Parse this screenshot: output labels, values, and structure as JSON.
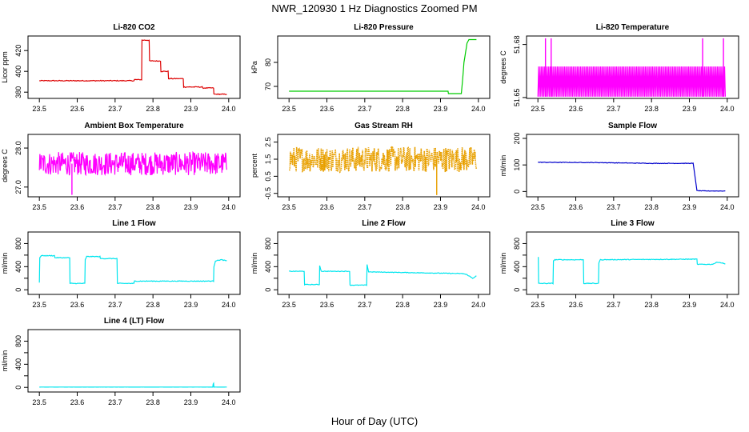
{
  "figure": {
    "title": "NWR_120930  1 Hz Diagnostics Zoomed PM",
    "xlabel": "Hour of Day (UTC)"
  },
  "chart_data": [
    {
      "type": "line",
      "title": "Li-820 CO2",
      "ylabel": "Licor ppm",
      "color": "#dd0000",
      "xlim": [
        23.47,
        24.03
      ],
      "ylim": [
        374,
        434
      ],
      "yticks": [
        380,
        400,
        420
      ],
      "ytick_labels": [
        "380",
        "400",
        "420"
      ],
      "xticks": [
        23.5,
        23.6,
        23.7,
        23.8,
        23.9,
        24.0
      ],
      "xtick_labels": [
        "23.5",
        "23.6",
        "23.7",
        "23.8",
        "23.9",
        "24.0"
      ],
      "series": [
        {
          "name": "CO2",
          "x": [
            23.5,
            23.75,
            23.751,
            23.77,
            23.771,
            23.79,
            23.791,
            23.82,
            23.821,
            23.84,
            23.841,
            23.88,
            23.881,
            23.93,
            23.931,
            23.96,
            23.961,
            23.995
          ],
          "y": [
            391,
            391,
            392,
            392,
            430,
            430,
            410,
            410,
            400,
            400,
            393,
            393,
            385,
            385,
            384,
            384,
            378,
            378
          ],
          "noise": 0.4
        }
      ]
    },
    {
      "type": "line",
      "title": "Li-820 Pressure",
      "ylabel": "kPa",
      "color": "#00cc00",
      "xlim": [
        23.47,
        24.03
      ],
      "ylim": [
        65,
        91
      ],
      "yticks": [
        70,
        80
      ],
      "ytick_labels": [
        "70",
        "80"
      ],
      "xticks": [
        23.5,
        23.6,
        23.7,
        23.8,
        23.9,
        24.0
      ],
      "xtick_labels": [
        "23.5",
        "23.6",
        "23.7",
        "23.8",
        "23.9",
        "24.0"
      ],
      "series": [
        {
          "name": "Pressure",
          "x": [
            23.5,
            23.92,
            23.921,
            23.955,
            23.958,
            23.962,
            23.97,
            23.975,
            23.995
          ],
          "y": [
            68,
            68,
            67,
            67,
            72,
            80,
            88,
            89.5,
            89.5
          ],
          "noise": 0
        }
      ]
    },
    {
      "type": "line",
      "title": "Li-820 Temperature",
      "ylabel": "degrees C",
      "color": "#ff00ff",
      "xlim": [
        23.47,
        24.03
      ],
      "ylim": [
        51.6495,
        51.6848
      ],
      "yticks": [
        51.65,
        51.68
      ],
      "ytick_labels": [
        "51.65",
        "51.68"
      ],
      "xticks": [
        23.5,
        23.6,
        23.7,
        23.8,
        23.9,
        24.0
      ],
      "xtick_labels": [
        "23.5",
        "23.6",
        "23.7",
        "23.8",
        "23.9",
        "24.0"
      ],
      "series": [
        {
          "name": "Temperature",
          "pattern": "toggle",
          "x_range": [
            23.5,
            23.995
          ],
          "low": 51.6505,
          "high": 51.6675,
          "spikes_x": [
            23.52,
            23.535,
            23.935,
            23.99
          ],
          "spike_value": 51.6835
        }
      ]
    },
    {
      "type": "line",
      "title": "Ambient Box Temperature",
      "ylabel": "degrees C",
      "color": "#ff00ff",
      "xlim": [
        23.47,
        24.03
      ],
      "ylim": [
        26.75,
        28.35
      ],
      "yticks": [
        27.0,
        28.0
      ],
      "ytick_labels": [
        "27.0",
        "28.0"
      ],
      "xticks": [
        23.5,
        23.6,
        23.7,
        23.8,
        23.9,
        24.0
      ],
      "xtick_labels": [
        "23.5",
        "23.6",
        "23.7",
        "23.8",
        "23.9",
        "24.0"
      ],
      "series": [
        {
          "name": "Box Temperature",
          "pattern": "noise",
          "x_range": [
            23.5,
            23.995
          ],
          "mean": 27.6,
          "amp": 0.3,
          "spikes_x": [
            23.586
          ],
          "spike_value": 26.8
        }
      ]
    },
    {
      "type": "line",
      "title": "Gas Stream RH",
      "ylabel": "percent",
      "color": "#e8a000",
      "xlim": [
        23.47,
        24.03
      ],
      "ylim": [
        -0.7,
        2.95
      ],
      "yticks": [
        -0.5,
        0.5,
        1.5,
        2.5
      ],
      "ytick_labels": [
        "-0.5",
        "0.5",
        "1.5",
        "2.5"
      ],
      "xticks": [
        23.5,
        23.6,
        23.7,
        23.8,
        23.9,
        24.0
      ],
      "xtick_labels": [
        "23.5",
        "23.6",
        "23.7",
        "23.8",
        "23.9",
        "24.0"
      ],
      "series": [
        {
          "name": "RH",
          "pattern": "noise",
          "x_range": [
            23.5,
            23.995
          ],
          "mean": 1.5,
          "amp": 0.75,
          "spikes_x": [
            23.89
          ],
          "spike_value": -0.6,
          "dotted": true
        }
      ]
    },
    {
      "type": "line",
      "title": "Sample Flow",
      "ylabel": "ml/min",
      "color": "#0000cc",
      "xlim": [
        23.47,
        24.03
      ],
      "ylim": [
        -20,
        215
      ],
      "yticks": [
        0,
        100,
        200
      ],
      "ytick_labels": [
        "0",
        "100",
        "200"
      ],
      "xticks": [
        23.5,
        23.6,
        23.7,
        23.8,
        23.9,
        24.0
      ],
      "xtick_labels": [
        "23.5",
        "23.6",
        "23.7",
        "23.8",
        "23.9",
        "24.0"
      ],
      "series": [
        {
          "name": "Sample Flow",
          "x": [
            23.5,
            23.65,
            23.8,
            23.91,
            23.915,
            23.92,
            23.94,
            23.995
          ],
          "y": [
            110,
            109,
            106,
            106,
            55,
            3,
            2,
            2
          ],
          "noise": 1.0
        }
      ]
    },
    {
      "type": "line",
      "title": "Line 1 Flow",
      "ylabel": "ml/min",
      "color": "#00e5ee",
      "xlim": [
        23.47,
        24.03
      ],
      "ylim": [
        -80,
        1000
      ],
      "yticks": [
        0,
        200,
        400,
        600,
        800
      ],
      "ytick_labels": [
        "0",
        "400",
        "800"
      ],
      "xticks": [
        23.5,
        23.6,
        23.7,
        23.8,
        23.9,
        24.0
      ],
      "xtick_labels": [
        "23.5",
        "23.6",
        "23.7",
        "23.8",
        "23.9",
        "24.0"
      ],
      "series": [
        {
          "name": "Line 1",
          "x": [
            23.5,
            23.501,
            23.505,
            23.54,
            23.541,
            23.58,
            23.581,
            23.62,
            23.621,
            23.625,
            23.66,
            23.661,
            23.705,
            23.706,
            23.75,
            23.751,
            23.96,
            23.961,
            23.965,
            23.98,
            23.995
          ],
          "y": [
            120,
            560,
            590,
            590,
            555,
            555,
            110,
            110,
            520,
            575,
            575,
            540,
            540,
            110,
            110,
            150,
            150,
            400,
            500,
            520,
            500
          ],
          "noise": 6
        }
      ]
    },
    {
      "type": "line",
      "title": "Line 2 Flow",
      "ylabel": "ml/min",
      "color": "#00e5ee",
      "xlim": [
        23.47,
        24.03
      ],
      "ylim": [
        -80,
        1000
      ],
      "yticks": [
        0,
        200,
        400,
        600,
        800
      ],
      "ytick_labels": [
        "0",
        "400",
        "800"
      ],
      "xticks": [
        23.5,
        23.6,
        23.7,
        23.8,
        23.9,
        24.0
      ],
      "xtick_labels": [
        "23.5",
        "23.6",
        "23.7",
        "23.8",
        "23.9",
        "24.0"
      ],
      "series": [
        {
          "name": "Line 2",
          "x": [
            23.5,
            23.54,
            23.541,
            23.58,
            23.581,
            23.585,
            23.66,
            23.661,
            23.705,
            23.706,
            23.71,
            23.96,
            23.97,
            23.985,
            23.995
          ],
          "y": [
            320,
            320,
            90,
            90,
            420,
            320,
            320,
            80,
            80,
            440,
            310,
            280,
            260,
            200,
            240
          ],
          "noise": 5
        }
      ]
    },
    {
      "type": "line",
      "title": "Line 3 Flow",
      "ylabel": "ml/min",
      "color": "#00e5ee",
      "xlim": [
        23.47,
        24.03
      ],
      "ylim": [
        -80,
        1000
      ],
      "yticks": [
        0,
        200,
        400,
        600,
        800
      ],
      "ytick_labels": [
        "0",
        "400",
        "800"
      ],
      "xticks": [
        23.5,
        23.6,
        23.7,
        23.8,
        23.9,
        24.0
      ],
      "xtick_labels": [
        "23.5",
        "23.6",
        "23.7",
        "23.8",
        "23.9",
        "24.0"
      ],
      "series": [
        {
          "name": "Line 3",
          "x": [
            23.5,
            23.501,
            23.502,
            23.54,
            23.541,
            23.545,
            23.62,
            23.621,
            23.66,
            23.661,
            23.665,
            23.92,
            23.921,
            23.96,
            23.975,
            23.995
          ],
          "y": [
            560,
            560,
            110,
            110,
            500,
            520,
            520,
            110,
            110,
            470,
            520,
            530,
            440,
            440,
            480,
            450
          ],
          "noise": 6
        }
      ]
    },
    {
      "type": "line",
      "title": "Line 4 (LT) Flow",
      "ylabel": "ml/min",
      "color": "#00e5ee",
      "xlim": [
        23.47,
        24.03
      ],
      "ylim": [
        -80,
        1000
      ],
      "yticks": [
        0,
        200,
        400,
        600,
        800
      ],
      "ytick_labels": [
        "0",
        "400",
        "800"
      ],
      "xticks": [
        23.5,
        23.6,
        23.7,
        23.8,
        23.9,
        24.0
      ],
      "xtick_labels": [
        "23.5",
        "23.6",
        "23.7",
        "23.8",
        "23.9",
        "24.0"
      ],
      "series": [
        {
          "name": "Line 4",
          "x": [
            23.5,
            23.958,
            23.959,
            23.96,
            23.961,
            23.995
          ],
          "y": [
            5,
            5,
            60,
            70,
            5,
            5
          ],
          "noise": 1
        }
      ]
    }
  ]
}
